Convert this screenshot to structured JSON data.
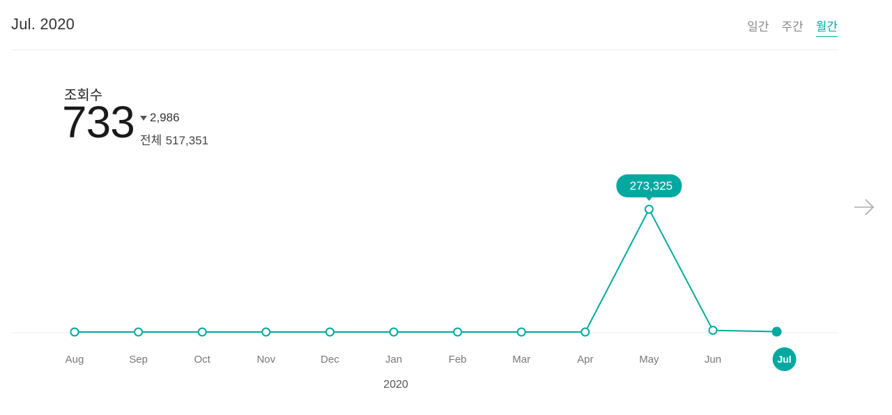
{
  "header": {
    "period": "Jul. 2020",
    "tabs": [
      {
        "label": "일간",
        "active": false
      },
      {
        "label": "주간",
        "active": false
      },
      {
        "label": "월간",
        "active": true
      }
    ]
  },
  "metric": {
    "label": "조회수",
    "value": "733",
    "change": "2,986",
    "change_direction": "down",
    "total_label": "전체",
    "total": "517,351"
  },
  "colors": {
    "accent": "#00a9a0",
    "axis_text": "#777777",
    "divider": "#eeeeee"
  },
  "icons": {
    "next": "arrow-right-icon"
  },
  "chart_data": {
    "type": "line",
    "categories": [
      "Aug",
      "Sep",
      "Oct",
      "Nov",
      "Dec",
      "Jan",
      "Feb",
      "Mar",
      "Apr",
      "May",
      "Jun",
      "Jul"
    ],
    "values": [
      0,
      0,
      0,
      0,
      0,
      0,
      0,
      0,
      0,
      273325,
      3719,
      733
    ],
    "year_label": "2020",
    "highlight_label": "273,325",
    "highlight_index": 9,
    "selected_index": 11,
    "ylim": [
      0,
      273325
    ],
    "grid": false
  }
}
